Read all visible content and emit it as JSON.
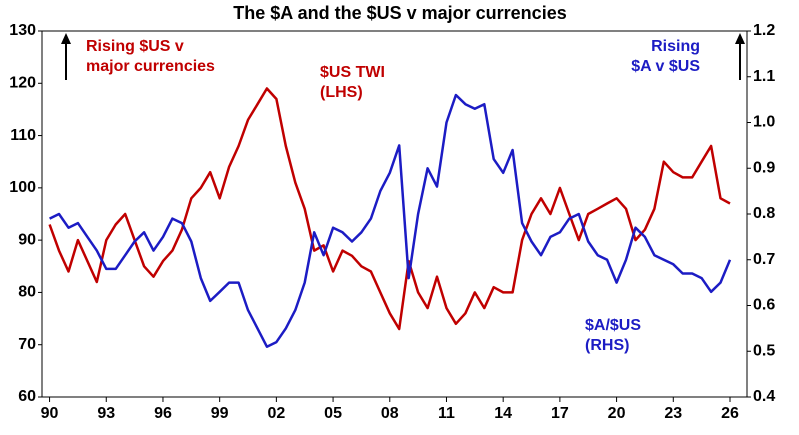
{
  "chart_data": {
    "type": "line",
    "title": "The $A and the $US v major currencies",
    "x": [
      1990,
      1990.5,
      1991,
      1991.5,
      1992,
      1992.5,
      1993,
      1993.5,
      1994,
      1994.5,
      1995,
      1995.5,
      1996,
      1996.5,
      1997,
      1997.5,
      1998,
      1998.5,
      1999,
      1999.5,
      2000,
      2000.5,
      2001,
      2001.5,
      2002,
      2002.5,
      2003,
      2003.5,
      2004,
      2004.5,
      2005,
      2005.5,
      2006,
      2006.5,
      2007,
      2007.5,
      2008,
      2008.5,
      2009,
      2009.5,
      2010,
      2010.5,
      2011,
      2011.5,
      2012,
      2012.5,
      2013,
      2013.5,
      2014,
      2014.5,
      2015,
      2015.5,
      2016,
      2016.5,
      2017,
      2017.5,
      2018,
      2018.5,
      2019,
      2019.5,
      2020,
      2020.5,
      2021,
      2021.5,
      2022,
      2022.5,
      2023,
      2023.5,
      2024,
      2024.5,
      2025,
      2025.5,
      2026
    ],
    "series": [
      {
        "name": "$US TWI",
        "color": "#c00000",
        "axis": "y",
        "values": [
          93,
          88,
          84,
          90,
          86,
          82,
          90,
          93,
          95,
          90,
          85,
          83,
          86,
          88,
          92,
          98,
          100,
          103,
          98,
          104,
          108,
          113,
          116,
          119,
          117,
          108,
          101,
          96,
          88,
          89,
          84,
          88,
          87,
          85,
          84,
          80,
          76,
          73,
          86,
          80,
          77,
          83,
          77,
          74,
          76,
          80,
          77,
          81,
          80,
          80,
          90,
          95,
          98,
          95,
          100,
          95,
          90,
          95,
          96,
          97,
          98,
          96,
          90,
          92,
          96,
          105,
          103,
          102,
          102,
          105,
          108,
          98,
          97
        ]
      },
      {
        "name": "$A/$US",
        "color": "#1c1cc4",
        "axis": "y2",
        "values": [
          0.79,
          0.8,
          0.77,
          0.78,
          0.75,
          0.72,
          0.68,
          0.68,
          0.71,
          0.74,
          0.76,
          0.72,
          0.75,
          0.79,
          0.78,
          0.74,
          0.66,
          0.61,
          0.63,
          0.65,
          0.65,
          0.59,
          0.55,
          0.51,
          0.52,
          0.55,
          0.59,
          0.65,
          0.76,
          0.71,
          0.77,
          0.76,
          0.74,
          0.76,
          0.79,
          0.85,
          0.89,
          0.95,
          0.66,
          0.8,
          0.9,
          0.86,
          1.0,
          1.06,
          1.04,
          1.03,
          1.04,
          0.92,
          0.89,
          0.94,
          0.78,
          0.74,
          0.71,
          0.75,
          0.76,
          0.79,
          0.8,
          0.74,
          0.71,
          0.7,
          0.65,
          0.7,
          0.77,
          0.75,
          0.71,
          0.7,
          0.69,
          0.67,
          0.67,
          0.66,
          0.63,
          0.65,
          0.7
        ]
      }
    ],
    "xlim": [
      1989.6,
      2026.9
    ],
    "xticks": [
      {
        "value": 1990,
        "label": "90"
      },
      {
        "value": 1993,
        "label": "93"
      },
      {
        "value": 1996,
        "label": "96"
      },
      {
        "value": 1999,
        "label": "99"
      },
      {
        "value": 2002,
        "label": "02"
      },
      {
        "value": 2005,
        "label": "05"
      },
      {
        "value": 2008,
        "label": "08"
      },
      {
        "value": 2011,
        "label": "11"
      },
      {
        "value": 2014,
        "label": "14"
      },
      {
        "value": 2017,
        "label": "17"
      },
      {
        "value": 2020,
        "label": "20"
      },
      {
        "value": 2023,
        "label": "23"
      },
      {
        "value": 2026,
        "label": "26"
      }
    ],
    "ylim": [
      60,
      130
    ],
    "yticks": [
      60,
      70,
      80,
      90,
      100,
      110,
      120,
      130
    ],
    "y2lim": [
      0.4,
      1.2
    ],
    "y2ticks": [
      0.4,
      0.5,
      0.6,
      0.7,
      0.8,
      0.9,
      {
        "value": 1,
        "label": "1.0"
      },
      1.1,
      1.2
    ],
    "annotations": [
      {
        "lines": [
          "Rising $US v",
          "major currencies"
        ],
        "color": "#c00000"
      },
      {
        "lines": [
          "$US TWI",
          "(LHS)"
        ],
        "color": "#c00000"
      },
      {
        "lines": [
          "Rising",
          "$A v $US"
        ],
        "color": "#1c1cc4"
      },
      {
        "lines": [
          "$A/$US",
          "(RHS)"
        ],
        "color": "#1c1cc4"
      }
    ]
  }
}
